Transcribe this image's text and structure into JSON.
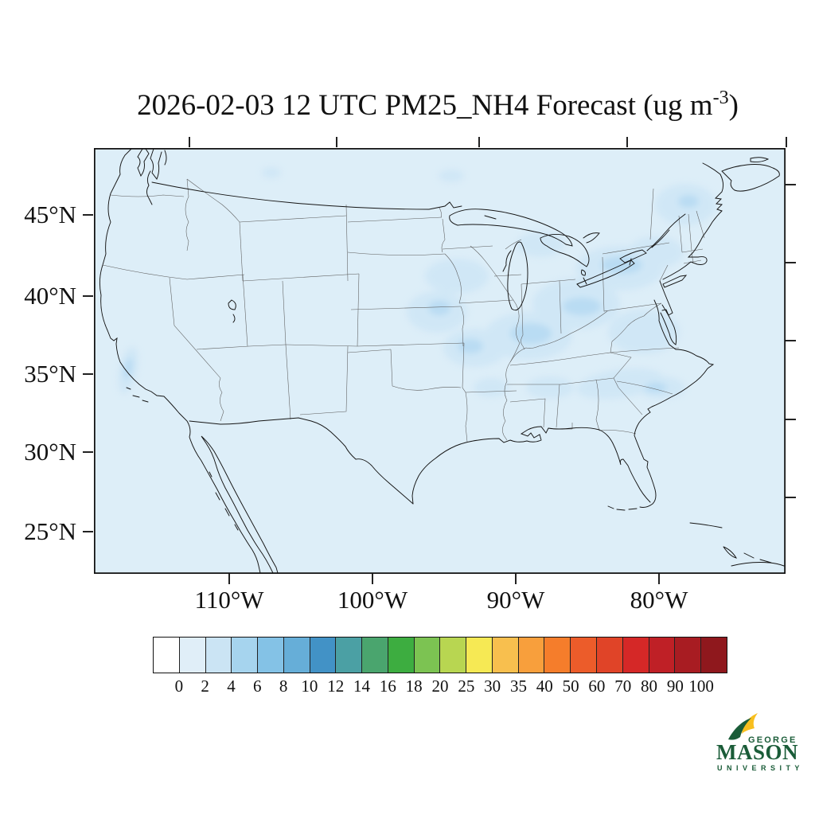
{
  "title": {
    "main": "2026-02-03 12 UTC PM25_NH4 Forecast (ug m",
    "superscript": "-3",
    "close": ")"
  },
  "map": {
    "y_axis_labels": [
      "45°N",
      "40°N",
      "35°N",
      "30°N",
      "25°N"
    ],
    "x_axis_labels": [
      "110°W",
      "100°W",
      "90°W",
      "80°W"
    ],
    "background_color": "#ddeef8"
  },
  "colorbar": {
    "tick_labels": [
      "0",
      "2",
      "4",
      "6",
      "8",
      "10",
      "12",
      "14",
      "16",
      "18",
      "20",
      "25",
      "30",
      "35",
      "40",
      "50",
      "60",
      "70",
      "80",
      "90",
      "100"
    ],
    "band_colors": [
      "#ffffff",
      "#e0eef8",
      "#cbe4f4",
      "#a6d4ee",
      "#84c2e6",
      "#66aed8",
      "#4292c6",
      "#4ba0a4",
      "#4aa56e",
      "#3dad40",
      "#7cc352",
      "#b8d651",
      "#f6e954",
      "#f8bf4e",
      "#f89f3c",
      "#f57d2b",
      "#ec5c2a",
      "#e04428",
      "#d52827",
      "#bf2026",
      "#a81c22",
      "#8f181d"
    ]
  },
  "logo": {
    "line1": "GEORGE",
    "line2": "MASON",
    "line3": "U N I V E R S I T Y",
    "green": "#1a5c38",
    "gold": "#f8bf1e"
  },
  "chart_data": {
    "type": "heatmap",
    "subtype": "geographic-forecast-map",
    "title": "2026-02-03 12 UTC PM25_NH4 Forecast (ug m-3)",
    "variable": "PM25_NH4",
    "valid_time": "2026-02-03 12 UTC",
    "units": "ug m-3",
    "region": "Continental United States (Lambert conformal view, ~122W-70W, ~23N-49N)",
    "x_ticks": [
      "110W",
      "100W",
      "90W",
      "80W"
    ],
    "y_ticks": [
      "45N",
      "40N",
      "35N",
      "30N",
      "25N"
    ],
    "grid": false,
    "legend_position": "bottom colorbar",
    "levels": [
      0,
      2,
      4,
      6,
      8,
      10,
      12,
      14,
      16,
      18,
      20,
      25,
      30,
      35,
      40,
      50,
      60,
      70,
      80,
      90,
      100
    ],
    "band_colors": [
      "#ffffff",
      "#e0eef8",
      "#cbe4f4",
      "#a6d4ee",
      "#84c2e6",
      "#66aed8",
      "#4292c6",
      "#4ba0a4",
      "#4aa56e",
      "#3dad40",
      "#7cc352",
      "#b8d651",
      "#f6e954",
      "#f8bf4e",
      "#f89f3c",
      "#f57d2b",
      "#ec5c2a",
      "#e04428",
      "#d52827",
      "#bf2026",
      "#a81c22",
      "#8f181d"
    ],
    "band_note": "first band = below 0 (white), last band = above 100",
    "observed_field": [
      {
        "region": "Most of domain (background)",
        "value_ugm3": "0-2"
      },
      {
        "region": "Iowa / Illinois / Indiana / Ohio valley",
        "value_ugm3": "2-6"
      },
      {
        "region": "Lake Erie - Lake Ontario shoreline and upstate New York",
        "value_ugm3": "2-6"
      },
      {
        "region": "St. Lawrence valley near Montreal",
        "value_ugm3": "2-4"
      },
      {
        "region": "Pennsylvania / Mid-Atlantic",
        "value_ugm3": "2-4"
      },
      {
        "region": "Tennessee and southern Appalachians",
        "value_ugm3": "2-4"
      },
      {
        "region": "California Central Valley",
        "value_ugm3": "2-4"
      },
      {
        "region": "Upper Wisconsin / Minnesota",
        "value_ugm3": "2-4"
      }
    ]
  }
}
